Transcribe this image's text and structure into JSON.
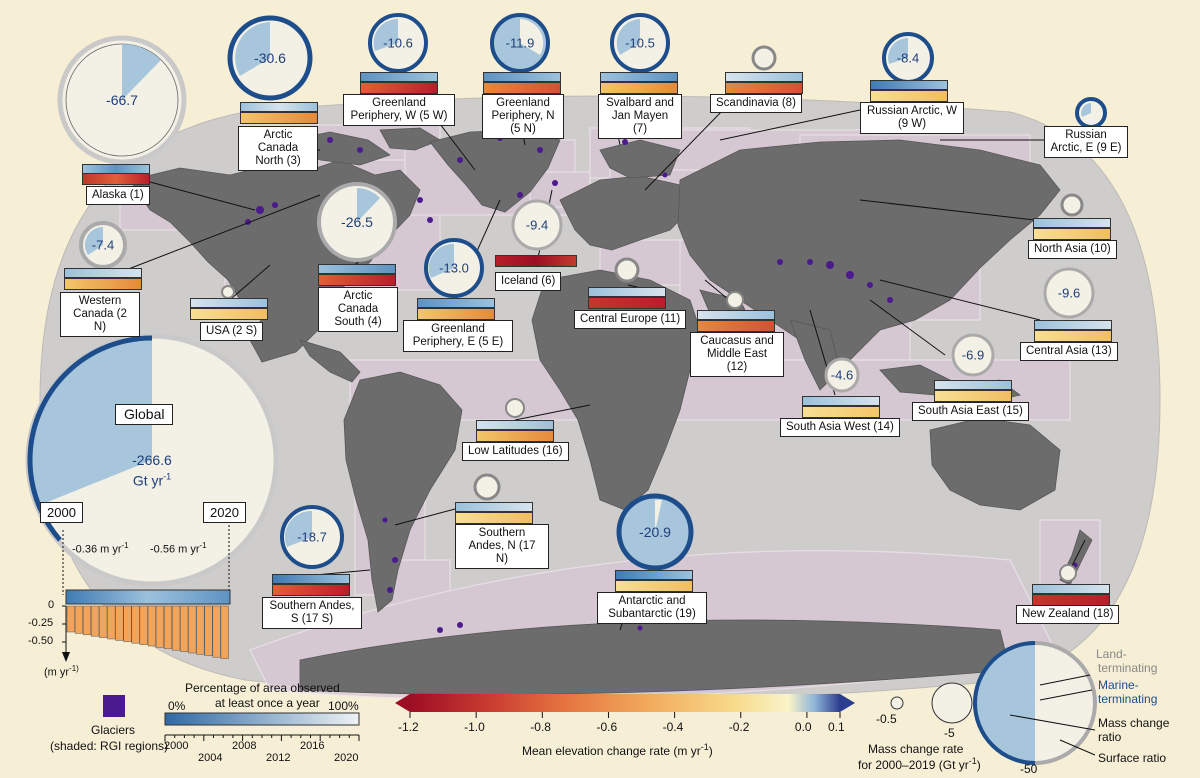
{
  "colors": {
    "background": "#f6efd6",
    "land": "#6e6e6e",
    "ocean": "#cfcdcc",
    "region": "#c8b8c8",
    "glacier": "#4b1a8c",
    "observed": "#a7c6dc",
    "unobserved": "#f3f0e6",
    "ring": "#1d4d8a"
  },
  "regions": [
    {
      "id": "alaska",
      "label": "Alaska (1)",
      "value": "-66.7"
    },
    {
      "id": "arctic-canada-north",
      "label": "Arctic Canada North (3)",
      "value": "-30.6"
    },
    {
      "id": "greenland-w",
      "label": "Greenland Periphery, W (5 W)",
      "value": "-10.6"
    },
    {
      "id": "greenland-n",
      "label": "Greenland Periphery, N (5 N)",
      "value": "-11.9"
    },
    {
      "id": "svalbard",
      "label": "Svalbard and Jan Mayen (7)",
      "value": "-10.5"
    },
    {
      "id": "scandinavia",
      "label": "Scandinavia (8)",
      "value": ""
    },
    {
      "id": "russian-arctic-w",
      "label": "Russian Arctic, W (9 W)",
      "value": "-8.4"
    },
    {
      "id": "russian-arctic-e",
      "label": "Russian Arctic, E (9 E)",
      "value": ""
    },
    {
      "id": "western-canada",
      "label": "Western Canada (2 N)",
      "value": "-7.4"
    },
    {
      "id": "usa",
      "label": "USA (2 S)",
      "value": ""
    },
    {
      "id": "arctic-canada-south",
      "label": "Arctic Canada South (4)",
      "value": "-26.5"
    },
    {
      "id": "greenland-e",
      "label": "Greenland Periphery, E (5 E)",
      "value": "-13.0"
    },
    {
      "id": "iceland",
      "label": "Iceland (6)",
      "value": "-9.4"
    },
    {
      "id": "central-europe",
      "label": "Central Europe (11)",
      "value": ""
    },
    {
      "id": "caucasus",
      "label": "Caucasus and Middle East (12)",
      "value": ""
    },
    {
      "id": "north-asia",
      "label": "North Asia (10)",
      "value": ""
    },
    {
      "id": "central-asia",
      "label": "Central Asia (13)",
      "value": "-9.6"
    },
    {
      "id": "south-asia-east",
      "label": "South Asia East (15)",
      "value": "-6.9"
    },
    {
      "id": "south-asia-west",
      "label": "South Asia West (14)",
      "value": "-4.6"
    },
    {
      "id": "low-latitudes",
      "label": "Low Latitudes (16)",
      "value": ""
    },
    {
      "id": "southern-andes-n",
      "label": "Southern Andes, N (17 N)",
      "value": ""
    },
    {
      "id": "southern-andes-s",
      "label": "Southern Andes, S (17 S)",
      "value": "-18.7"
    },
    {
      "id": "antarctic",
      "label": "Antarctic and Subantarctic (19)",
      "value": "-20.9"
    },
    {
      "id": "new-zealand",
      "label": "New Zealand (18)",
      "value": ""
    }
  ],
  "global": {
    "title": "Global",
    "value": "-266.6",
    "unit": "Gt yr",
    "unit_exp": "-1",
    "year_start": "2000",
    "year_end": "2020",
    "rate_start": "-0.36 m yr",
    "rate_end": "-0.56 m yr",
    "rate_exp": "-1",
    "axis_ticks": [
      "0",
      "-0.25",
      "-0.50"
    ],
    "axis_unit": "(m yr",
    "axis_unit_exp": "-1)"
  },
  "legend": {
    "glaciers_title": "Glaciers",
    "glaciers_sub": "(shaded: RGI regions)",
    "pct_title_1": "Percentage of area observed",
    "pct_title_2": "at least once a year",
    "pct_min": "0%",
    "pct_max": "100%",
    "years_top": [
      "2000",
      "2008",
      "2016"
    ],
    "years_bottom": [
      "2004",
      "2012",
      "2020"
    ],
    "years_top_b": [
      "2012"
    ],
    "colorbar_ticks": [
      "-1.2",
      "-1.0",
      "-0.8",
      "-0.6",
      "-0.4",
      "-0.2",
      "0.0",
      "0.1"
    ],
    "colorbar_title": "Mean elevation change rate (m yr",
    "colorbar_title_exp": "-1",
    "size_values": [
      "-0.5",
      "-5",
      "-50"
    ],
    "size_title_1": "Mass change rate",
    "size_title_2": "for 2000–2019 (Gt yr",
    "size_title_exp": "-1",
    "pie_labels": [
      "Land-",
      "terminating",
      "Marine-",
      "terminating",
      "Mass change",
      "ratio",
      "Surface ratio"
    ]
  }
}
